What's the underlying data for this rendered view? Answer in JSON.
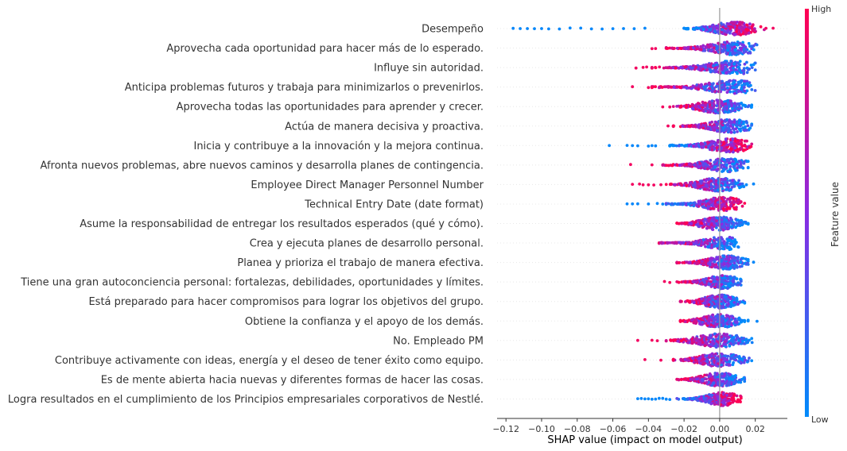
{
  "chart_data": {
    "type": "scatter",
    "subtype": "shap-beeswarm-summary",
    "xlabel": "SHAP value (impact on model output)",
    "xlim": [
      -0.125,
      0.038
    ],
    "xticks": [
      -0.12,
      -0.1,
      -0.08,
      -0.06,
      -0.04,
      -0.02,
      0.0,
      0.02
    ],
    "xtick_labels": [
      "−0.12",
      "−0.10",
      "−0.08",
      "−0.06",
      "−0.04",
      "−0.02",
      "0.00",
      "0.02"
    ],
    "colorbar": {
      "title": "Feature value",
      "high_label": "High",
      "low_label": "Low",
      "high_color": "#ff0052",
      "mid_color": "#8a2be2",
      "low_color": "#008bfb"
    },
    "features": [
      {
        "name": "Desempeño",
        "min": -0.116,
        "max": 0.03,
        "core_min": -0.02,
        "core_max": 0.025,
        "peak": 0.008,
        "low_side": "negative",
        "outliers": [
          -0.116,
          -0.112,
          -0.108,
          -0.104,
          -0.1,
          -0.096,
          -0.09,
          -0.084,
          -0.078,
          -0.072,
          -0.066,
          -0.06,
          -0.054,
          -0.048,
          -0.042,
          0.026,
          0.03
        ]
      },
      {
        "name": "Aprovecha cada oportunidad para hacer más de lo esperado.",
        "min": -0.038,
        "max": 0.024,
        "core_min": -0.03,
        "core_max": 0.022,
        "peak": 0.008,
        "low_side": "positive",
        "outliers": [
          -0.038,
          -0.036
        ]
      },
      {
        "name": "Influye sin autoridad.",
        "min": -0.047,
        "max": 0.021,
        "core_min": -0.038,
        "core_max": 0.02,
        "peak": 0.008,
        "low_side": "positive",
        "outliers": [
          -0.047,
          -0.043,
          -0.041
        ]
      },
      {
        "name": "Anticipa problemas futuros y trabaja para minimizarlos o prevenirlos.",
        "min": -0.049,
        "max": 0.022,
        "core_min": -0.038,
        "core_max": 0.02,
        "peak": 0.008,
        "low_side": "positive",
        "outliers": [
          -0.049,
          -0.04,
          -0.038
        ]
      },
      {
        "name": "Aprovecha todas las oportunidades para aprender y crecer.",
        "min": -0.032,
        "max": 0.019,
        "core_min": -0.026,
        "core_max": 0.018,
        "peak": 0.0,
        "low_side": "positive",
        "outliers": [
          -0.032,
          -0.028
        ]
      },
      {
        "name": "Actúa de manera decisiva y proactiva.",
        "min": -0.029,
        "max": 0.02,
        "core_min": -0.026,
        "core_max": 0.018,
        "peak": 0.006,
        "low_side": "positive",
        "outliers": [
          -0.029
        ]
      },
      {
        "name": "Inicia y contribuye a la innovación y la mejora continua.",
        "min": -0.062,
        "max": 0.02,
        "core_min": -0.028,
        "core_max": 0.018,
        "peak": 0.006,
        "low_side": "negative",
        "outliers": [
          -0.062,
          -0.052,
          -0.049,
          -0.046,
          -0.04,
          -0.038,
          -0.036
        ]
      },
      {
        "name": "Afronta nuevos problemas, abre nuevos caminos y desarrolla planes de contingencia.",
        "min": -0.05,
        "max": 0.018,
        "core_min": -0.032,
        "core_max": 0.016,
        "peak": 0.004,
        "low_side": "positive",
        "outliers": [
          -0.05,
          -0.038
        ]
      },
      {
        "name": "Employee Direct Manager Personnel Number",
        "min": -0.049,
        "max": 0.019,
        "core_min": -0.03,
        "core_max": 0.015,
        "peak": 0.0,
        "low_side": "positive",
        "outliers": [
          -0.049,
          -0.045,
          -0.043,
          -0.04,
          -0.037,
          -0.033,
          0.019
        ]
      },
      {
        "name": "Technical Entry Date (date format)",
        "min": -0.052,
        "max": 0.016,
        "core_min": -0.03,
        "core_max": 0.014,
        "peak": 0.002,
        "low_side": "negative",
        "outliers": [
          -0.052,
          -0.049,
          -0.046,
          -0.04,
          -0.035,
          -0.032
        ]
      },
      {
        "name": "Asume la responsabilidad de entregar los resultados esperados (qué y cómo).",
        "min": -0.027,
        "max": 0.017,
        "core_min": -0.024,
        "core_max": 0.016,
        "peak": 0.0,
        "low_side": "positive",
        "outliers": []
      },
      {
        "name": "Crea y ejecuta planes de desarrollo personal.",
        "min": -0.036,
        "max": 0.013,
        "core_min": -0.034,
        "core_max": 0.012,
        "peak": 0.004,
        "low_side": "positive",
        "outliers": []
      },
      {
        "name": "Planea y prioriza el trabajo de manera efectiva.",
        "min": -0.025,
        "max": 0.019,
        "core_min": -0.024,
        "core_max": 0.016,
        "peak": 0.004,
        "low_side": "positive",
        "outliers": [
          0.019
        ]
      },
      {
        "name": "Tiene una gran autoconciencia personal: fortalezas, debilidades, oportunidades y límites.",
        "min": -0.031,
        "max": 0.013,
        "core_min": -0.024,
        "core_max": 0.012,
        "peak": 0.002,
        "low_side": "positive",
        "outliers": [
          -0.031,
          -0.028
        ]
      },
      {
        "name": "Está preparado para hacer compromisos para lograr los objetivos del grupo.",
        "min": -0.022,
        "max": 0.015,
        "core_min": -0.022,
        "core_max": 0.014,
        "peak": 0.0,
        "low_side": "positive",
        "outliers": []
      },
      {
        "name": "Obtiene la confianza y el apoyo de los demás.",
        "min": -0.024,
        "max": 0.021,
        "core_min": -0.022,
        "core_max": 0.016,
        "peak": 0.0,
        "low_side": "positive",
        "outliers": [
          0.021
        ]
      },
      {
        "name": "No. Empleado PM",
        "min": -0.046,
        "max": 0.024,
        "core_min": -0.03,
        "core_max": 0.02,
        "peak": 0.0,
        "low_side": "positive",
        "outliers": [
          -0.046,
          -0.038,
          -0.035
        ]
      },
      {
        "name": "Contribuye activamente con ideas, energía y el deseo de tener éxito como equipo.",
        "min": -0.042,
        "max": 0.02,
        "core_min": -0.026,
        "core_max": 0.018,
        "peak": 0.0,
        "low_side": "positive",
        "outliers": [
          -0.042,
          -0.033
        ]
      },
      {
        "name": "Es de mente abierta hacia nuevas y diferentes formas de hacer las cosas.",
        "min": -0.026,
        "max": 0.015,
        "core_min": -0.024,
        "core_max": 0.014,
        "peak": 0.0,
        "low_side": "positive",
        "outliers": []
      },
      {
        "name": "Logra resultados en el cumplimiento de los Principios empresariales corporativos de Nestlé.",
        "min": -0.046,
        "max": 0.013,
        "core_min": -0.024,
        "core_max": 0.012,
        "peak": 0.002,
        "low_side": "negative",
        "outliers": [
          -0.046,
          -0.044,
          -0.042,
          -0.04,
          -0.038,
          -0.036,
          -0.034,
          -0.032,
          -0.03,
          -0.028
        ]
      }
    ]
  }
}
